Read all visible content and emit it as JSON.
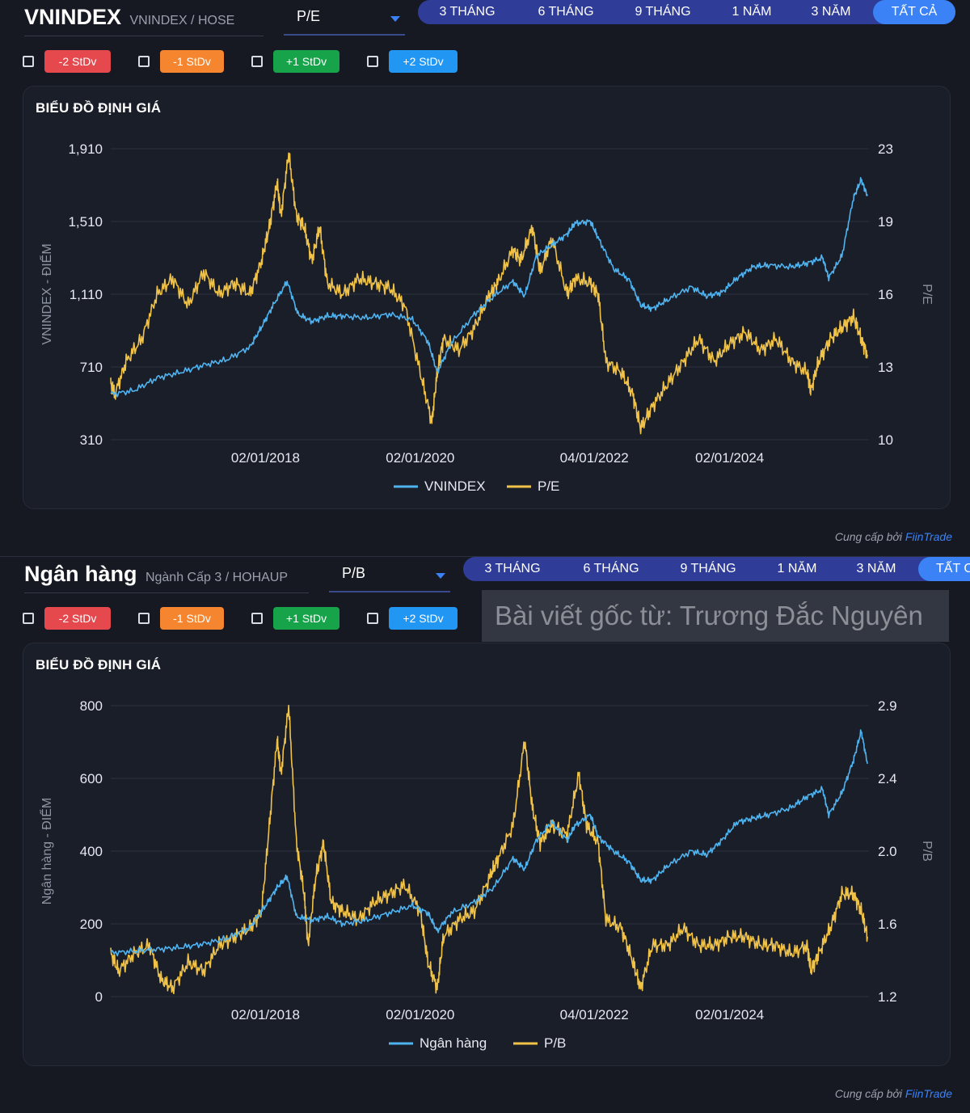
{
  "panels": [
    {
      "title": "VNINDEX",
      "subtitle": "VNINDEX / HOSE",
      "metric": "P/E",
      "ranges": [
        "3 THÁNG",
        "6 THÁNG",
        "9 THÁNG",
        "1 NĂM",
        "3 NĂM",
        "TẤT CẢ"
      ],
      "active_range": "TẤT CẢ",
      "stdev_buttons": [
        "-2 StDv",
        "-1 StDv",
        "+1 StDv",
        "+2 StDv"
      ],
      "chart_title": "BIỂU ĐỒ ĐỊNH GIÁ",
      "provider_prefix": "Cung cấp bởi",
      "provider_brand": "FiinTrade"
    },
    {
      "title": "Ngân hàng",
      "subtitle": "Ngành Cấp 3 / HOHAUP",
      "metric": "P/B",
      "ranges": [
        "3 THÁNG",
        "6 THÁNG",
        "9 THÁNG",
        "1 NĂM",
        "3 NĂM",
        "TẤT C"
      ],
      "active_range": "TẤT C",
      "stdev_buttons": [
        "-2 StDv",
        "-1 StDv",
        "+1 StDv",
        "+2 StDv"
      ],
      "chart_title": "BIỂU ĐỒ ĐỊNH GIÁ",
      "provider_prefix": "Cung cấp bởi",
      "provider_brand": "FiinTrade",
      "watermark": "Bài viết gốc từ: Trương Đắc Nguyên"
    }
  ],
  "colors": {
    "background": "#161922",
    "card": "#1a1e29",
    "range_bar": "#2f3d99",
    "range_active": "#3b82f6",
    "index_line": "#4fb3f0",
    "ratio_line": "#f0c247",
    "sd_minus2": "#e5484d",
    "sd_minus1": "#f5862f",
    "sd_plus1": "#16a34a",
    "sd_plus2": "#2196f3"
  },
  "chart_data": [
    {
      "type": "line",
      "title": "BIỂU ĐỒ ĐỊNH GIÁ",
      "ylabel": "VNINDEX - ĐIỂM",
      "y2label": "P/E",
      "ylim": [
        310,
        1910
      ],
      "y2lim": [
        10,
        23
      ],
      "yticks": [
        "1,910",
        "1,510",
        "1,110",
        "710",
        "310"
      ],
      "y2ticks": [
        "23",
        "19",
        "16",
        "13",
        "10"
      ],
      "xticks": [
        "02/01/2018",
        "02/01/2020",
        "04/01/2022",
        "02/01/2024"
      ],
      "xticks_t": [
        2018.0,
        2020.0,
        2022.25,
        2024.0
      ],
      "xlim": [
        2016.0,
        2025.8
      ],
      "series": [
        {
          "name": "VNINDEX",
          "axis": "left",
          "t": [
            2016.0,
            2016.3,
            2016.6,
            2016.9,
            2017.2,
            2017.5,
            2017.8,
            2017.95,
            2018.1,
            2018.28,
            2018.42,
            2018.6,
            2018.8,
            2019.0,
            2019.3,
            2019.6,
            2019.9,
            2020.1,
            2020.22,
            2020.4,
            2020.7,
            2020.95,
            2021.2,
            2021.35,
            2021.5,
            2021.7,
            2021.9,
            2022.0,
            2022.2,
            2022.3,
            2022.5,
            2022.7,
            2022.85,
            2023.0,
            2023.2,
            2023.5,
            2023.7,
            2023.9,
            2024.1,
            2024.3,
            2024.5,
            2024.8,
            2025.0,
            2025.2,
            2025.28,
            2025.45,
            2025.6,
            2025.7,
            2025.78
          ],
          "values": [
            560,
            580,
            650,
            680,
            720,
            750,
            820,
            930,
            1050,
            1180,
            1000,
            960,
            990,
            990,
            980,
            1000,
            970,
            850,
            680,
            840,
            1000,
            1100,
            1180,
            1100,
            1320,
            1380,
            1440,
            1500,
            1510,
            1420,
            1250,
            1190,
            1050,
            1030,
            1080,
            1150,
            1100,
            1120,
            1200,
            1260,
            1270,
            1260,
            1280,
            1310,
            1200,
            1320,
            1640,
            1740,
            1650
          ]
        },
        {
          "name": "P/E",
          "axis": "right",
          "t": [
            2016.0,
            2016.05,
            2016.2,
            2016.4,
            2016.6,
            2016.8,
            2017.0,
            2017.2,
            2017.4,
            2017.6,
            2017.8,
            2017.95,
            2018.05,
            2018.15,
            2018.2,
            2018.3,
            2018.4,
            2018.5,
            2018.6,
            2018.7,
            2018.8,
            2019.0,
            2019.2,
            2019.4,
            2019.6,
            2019.8,
            2020.0,
            2020.15,
            2020.22,
            2020.3,
            2020.5,
            2020.7,
            2020.9,
            2021.0,
            2021.2,
            2021.3,
            2021.45,
            2021.55,
            2021.7,
            2021.9,
            2022.0,
            2022.2,
            2022.3,
            2022.4,
            2022.6,
            2022.75,
            2022.85,
            2023.0,
            2023.2,
            2023.4,
            2023.6,
            2023.8,
            2024.0,
            2024.2,
            2024.4,
            2024.6,
            2024.8,
            2025.0,
            2025.05,
            2025.15,
            2025.3,
            2025.45,
            2025.6,
            2025.7,
            2025.78
          ],
          "values": [
            12.5,
            12.0,
            13.5,
            14.5,
            16.5,
            17.2,
            16.0,
            17.5,
            16.5,
            17.0,
            16.5,
            18.0,
            19.5,
            21.5,
            20.0,
            22.8,
            20.0,
            19.5,
            18.0,
            19.5,
            17.0,
            16.5,
            17.2,
            17.0,
            16.8,
            16.0,
            13.0,
            10.8,
            13.0,
            14.5,
            14.0,
            15.0,
            16.5,
            17.0,
            18.5,
            18.0,
            19.5,
            17.5,
            19.0,
            16.5,
            17.2,
            17.0,
            16.5,
            13.5,
            13.0,
            12.0,
            10.5,
            11.5,
            12.5,
            13.5,
            14.5,
            13.5,
            14.3,
            14.8,
            14.0,
            14.5,
            13.5,
            13.0,
            12.2,
            13.5,
            14.5,
            15.0,
            15.5,
            14.5,
            13.8
          ]
        }
      ]
    },
    {
      "type": "line",
      "title": "BIỂU ĐỒ ĐỊNH GIÁ",
      "ylabel": "Ngân hàng - ĐIỂM",
      "y2label": "P/B",
      "ylim": [
        0,
        800
      ],
      "y2lim": [
        1.2,
        2.9
      ],
      "yticks": [
        "800",
        "600",
        "400",
        "200",
        "0"
      ],
      "y2ticks": [
        "2.9",
        "2.4",
        "2.0",
        "1.6",
        "1.2"
      ],
      "xticks": [
        "02/01/2018",
        "02/01/2020",
        "04/01/2022",
        "02/01/2024"
      ],
      "xticks_t": [
        2018.0,
        2020.0,
        2022.25,
        2024.0
      ],
      "xlim": [
        2016.0,
        2025.8
      ],
      "series": [
        {
          "name": "Ngân hàng",
          "axis": "left",
          "t": [
            2016.0,
            2016.3,
            2016.6,
            2016.9,
            2017.2,
            2017.5,
            2017.8,
            2018.0,
            2018.15,
            2018.28,
            2018.4,
            2018.6,
            2018.8,
            2019.0,
            2019.3,
            2019.6,
            2019.9,
            2020.1,
            2020.22,
            2020.4,
            2020.7,
            2020.95,
            2021.2,
            2021.35,
            2021.5,
            2021.7,
            2021.9,
            2022.0,
            2022.2,
            2022.3,
            2022.5,
            2022.7,
            2022.85,
            2023.0,
            2023.2,
            2023.5,
            2023.7,
            2023.9,
            2024.1,
            2024.3,
            2024.5,
            2024.8,
            2025.0,
            2025.2,
            2025.28,
            2025.45,
            2025.6,
            2025.7,
            2025.78
          ],
          "values": [
            120,
            125,
            130,
            135,
            145,
            160,
            190,
            250,
            300,
            330,
            220,
            210,
            220,
            200,
            210,
            230,
            250,
            230,
            180,
            230,
            260,
            300,
            380,
            350,
            430,
            480,
            430,
            470,
            500,
            440,
            400,
            370,
            320,
            320,
            360,
            400,
            390,
            430,
            480,
            490,
            500,
            520,
            550,
            570,
            500,
            560,
            650,
            730,
            640
          ]
        },
        {
          "name": "P/B",
          "axis": "right",
          "t": [
            2016.0,
            2016.1,
            2016.3,
            2016.5,
            2016.65,
            2016.8,
            2017.0,
            2017.2,
            2017.4,
            2017.6,
            2017.8,
            2017.95,
            2018.05,
            2018.15,
            2018.2,
            2018.3,
            2018.4,
            2018.5,
            2018.55,
            2018.65,
            2018.75,
            2018.85,
            2019.0,
            2019.2,
            2019.4,
            2019.6,
            2019.8,
            2020.0,
            2020.1,
            2020.22,
            2020.3,
            2020.5,
            2020.7,
            2020.9,
            2021.0,
            2021.2,
            2021.35,
            2021.45,
            2021.55,
            2021.7,
            2021.9,
            2022.05,
            2022.15,
            2022.3,
            2022.4,
            2022.6,
            2022.75,
            2022.85,
            2023.0,
            2023.2,
            2023.4,
            2023.6,
            2023.8,
            2024.0,
            2024.2,
            2024.4,
            2024.6,
            2024.8,
            2025.0,
            2025.05,
            2025.15,
            2025.3,
            2025.45,
            2025.6,
            2025.7,
            2025.78
          ],
          "values": [
            1.45,
            1.35,
            1.45,
            1.5,
            1.3,
            1.25,
            1.4,
            1.35,
            1.5,
            1.55,
            1.6,
            1.7,
            2.2,
            2.7,
            2.5,
            2.9,
            2.1,
            1.8,
            1.5,
            1.9,
            2.1,
            1.75,
            1.7,
            1.65,
            1.75,
            1.8,
            1.85,
            1.7,
            1.4,
            1.25,
            1.55,
            1.65,
            1.7,
            1.9,
            2.0,
            2.2,
            2.7,
            2.3,
            2.1,
            2.2,
            2.15,
            2.5,
            2.2,
            2.1,
            1.65,
            1.6,
            1.4,
            1.25,
            1.5,
            1.5,
            1.6,
            1.5,
            1.5,
            1.55,
            1.55,
            1.5,
            1.5,
            1.45,
            1.5,
            1.35,
            1.45,
            1.6,
            1.8,
            1.8,
            1.7,
            1.55
          ]
        }
      ]
    }
  ]
}
